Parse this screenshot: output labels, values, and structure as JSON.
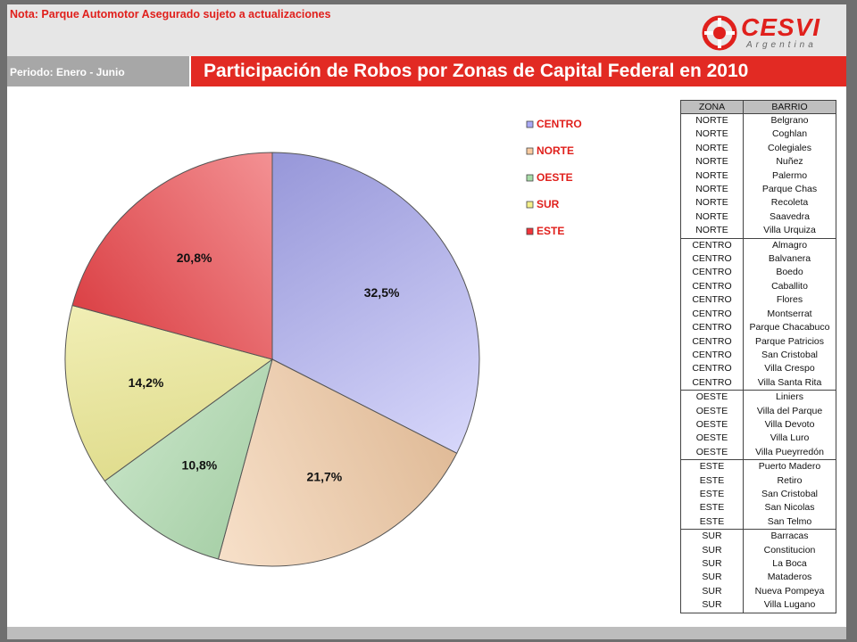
{
  "header": {
    "note": "Nota: Parque Automotor Asegurado sujeto a actualizaciones",
    "period": "Periodo: Enero - Junio",
    "title": "Participación de Robos por Zonas de Capital Federal en 2010",
    "logo_text": "CESVI",
    "logo_subtext": "Argentina"
  },
  "colors": {
    "accent_red": "#e22a23",
    "CENTRO": "#a9a9f6",
    "NORTE": "#f9cba0",
    "OESTE": "#a7dca7",
    "SUR": "#f4f08a",
    "ESTE": "#f2343a"
  },
  "chart_data": {
    "type": "pie",
    "categories": [
      "CENTRO",
      "NORTE",
      "OESTE",
      "SUR",
      "ESTE"
    ],
    "values": [
      32.5,
      21.7,
      10.8,
      14.2,
      20.8
    ],
    "labels": [
      "32,5%",
      "21,7%",
      "10,8%",
      "14,2%",
      "20,8%"
    ],
    "legend_position": "right",
    "start": "12 o'clock",
    "direction": "clockwise"
  },
  "table": {
    "headers": [
      "ZONA",
      "BARRIO"
    ],
    "rows": [
      [
        "NORTE",
        "Belgrano"
      ],
      [
        "NORTE",
        "Coghlan"
      ],
      [
        "NORTE",
        "Colegiales"
      ],
      [
        "NORTE",
        "Nuñez"
      ],
      [
        "NORTE",
        "Palermo"
      ],
      [
        "NORTE",
        "Parque Chas"
      ],
      [
        "NORTE",
        "Recoleta"
      ],
      [
        "NORTE",
        "Saavedra"
      ],
      [
        "NORTE",
        "Villa Urquiza"
      ],
      [
        "CENTRO",
        "Almagro"
      ],
      [
        "CENTRO",
        "Balvanera"
      ],
      [
        "CENTRO",
        "Boedo"
      ],
      [
        "CENTRO",
        "Caballito"
      ],
      [
        "CENTRO",
        "Flores"
      ],
      [
        "CENTRO",
        "Montserrat"
      ],
      [
        "CENTRO",
        "Parque Chacabuco"
      ],
      [
        "CENTRO",
        "Parque Patricios"
      ],
      [
        "CENTRO",
        "San Cristobal"
      ],
      [
        "CENTRO",
        "Villa Crespo"
      ],
      [
        "CENTRO",
        "Villa Santa Rita"
      ],
      [
        "OESTE",
        "Liniers"
      ],
      [
        "OESTE",
        "Villa del Parque"
      ],
      [
        "OESTE",
        "Villa Devoto"
      ],
      [
        "OESTE",
        "Villa Luro"
      ],
      [
        "OESTE",
        "Villa Pueyrredón"
      ],
      [
        "ESTE",
        "Puerto Madero"
      ],
      [
        "ESTE",
        "Retiro"
      ],
      [
        "ESTE",
        "San Cristobal"
      ],
      [
        "ESTE",
        "San Nicolas"
      ],
      [
        "ESTE",
        "San Telmo"
      ],
      [
        "SUR",
        "Barracas"
      ],
      [
        "SUR",
        "Constitucion"
      ],
      [
        "SUR",
        "La Boca"
      ],
      [
        "SUR",
        "Mataderos"
      ],
      [
        "SUR",
        "Nueva Pompeya"
      ],
      [
        "SUR",
        "Villa Lugano"
      ]
    ]
  }
}
